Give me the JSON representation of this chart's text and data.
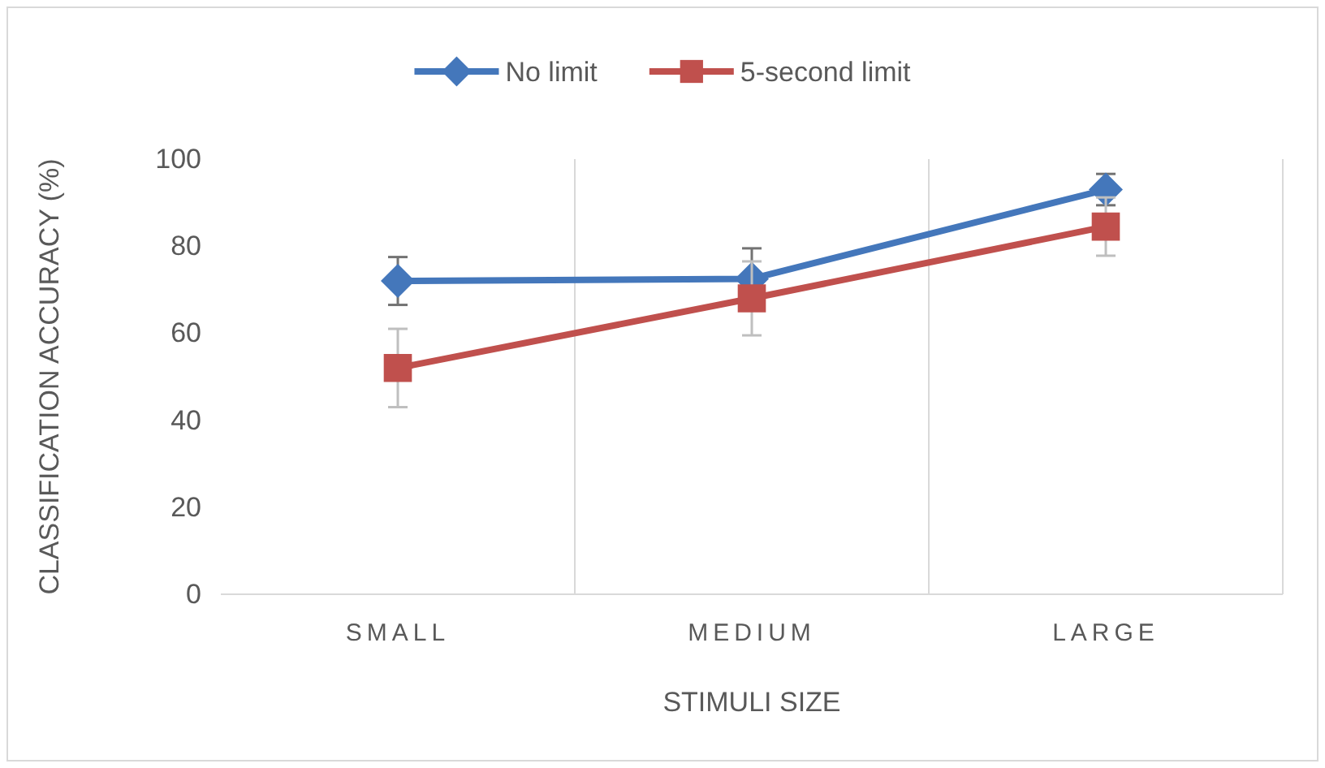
{
  "chart_data": {
    "type": "line",
    "xlabel": "STIMULI SIZE",
    "ylabel": "CLASSIFICATION ACCURACY (%)",
    "categories": [
      "SMALL",
      "MEDIUM",
      "LARGE"
    ],
    "series": [
      {
        "name": "No limit",
        "color": "#4477bb",
        "marker": "diamond",
        "values": [
          72,
          72.5,
          93
        ],
        "errors": [
          5.5,
          7,
          3.6
        ]
      },
      {
        "name": "5-second limit",
        "color": "#c0504d",
        "marker": "square",
        "values": [
          52,
          68,
          84.5
        ],
        "errors": [
          9,
          8.5,
          6.7
        ]
      }
    ],
    "ylim": [
      0,
      100
    ],
    "yticks": [
      0,
      20,
      40,
      60,
      80,
      100
    ],
    "grid": "x",
    "legend": "top",
    "line_style": "solid"
  }
}
